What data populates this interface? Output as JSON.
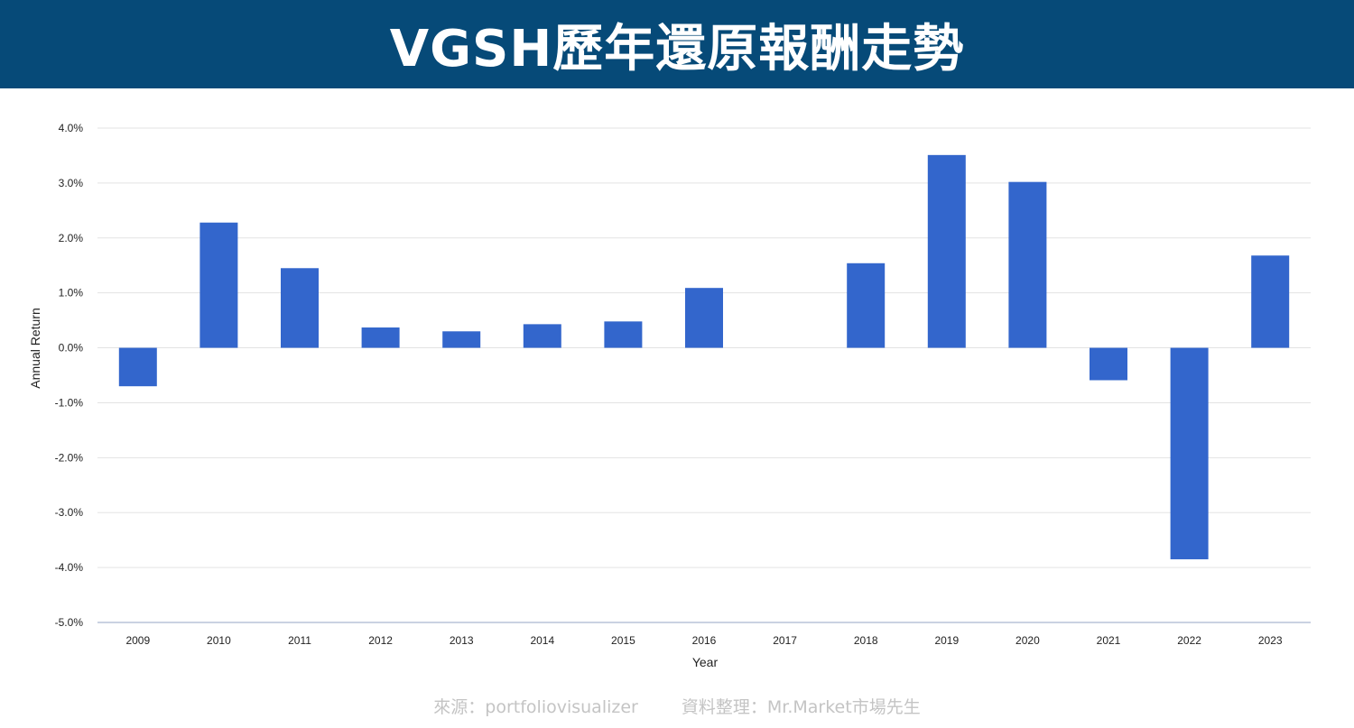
{
  "header": {
    "title": "VGSH歷年還原報酬走勢"
  },
  "footer": {
    "source": "來源：portfoliovisualizer",
    "compiled": "資料整理：Mr.Market市場先生"
  },
  "colors": {
    "banner": "#064a78",
    "bar": "#3366cc",
    "grid": "#e3e3e3",
    "footer_text": "#c4c4c4"
  },
  "chart_data": {
    "type": "bar",
    "categories": [
      "2009",
      "2010",
      "2011",
      "2012",
      "2013",
      "2014",
      "2015",
      "2016",
      "2017",
      "2018",
      "2019",
      "2020",
      "2021",
      "2022",
      "2023"
    ],
    "values": [
      -0.7,
      2.28,
      1.45,
      0.37,
      0.3,
      0.43,
      0.48,
      1.09,
      0.0,
      1.54,
      3.51,
      3.02,
      -0.59,
      -3.85,
      1.68
    ],
    "unit": "%",
    "title": "",
    "xlabel": "Year",
    "ylabel": "Annual Return",
    "ylim": [
      -5.0,
      4.0
    ],
    "yticks": [
      "4.0%",
      "3.0%",
      "2.0%",
      "1.0%",
      "0.0%",
      "-1.0%",
      "-2.0%",
      "-3.0%",
      "-4.0%",
      "-5.0%"
    ],
    "ytick_values": [
      4,
      3,
      2,
      1,
      0,
      -1,
      -2,
      -3,
      -4,
      -5
    ],
    "grid": true,
    "legend": "none"
  }
}
